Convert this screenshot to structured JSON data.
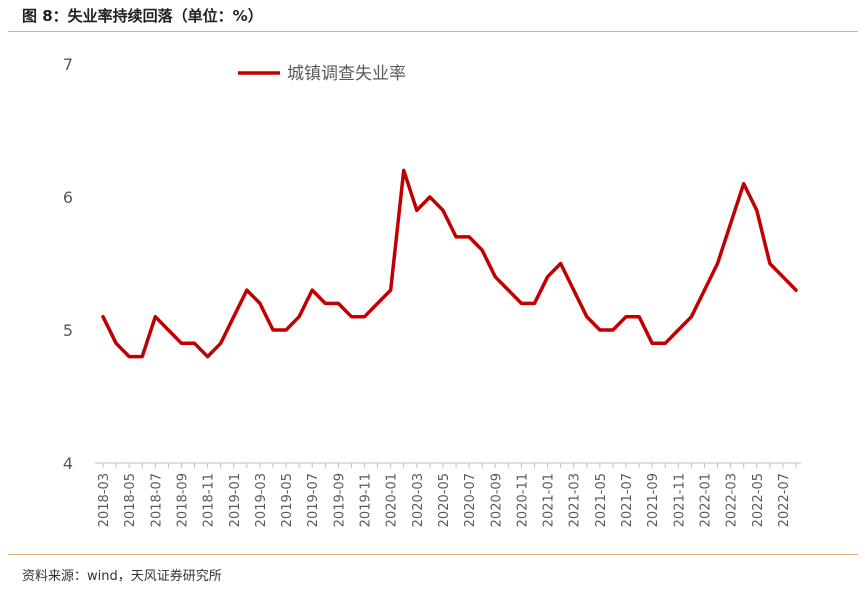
{
  "header": {
    "title": "图 8：失业率持续回落（单位：%）"
  },
  "footer": {
    "source": "资料来源：wind，天风证券研究所"
  },
  "colors": {
    "series": "#c00000",
    "axis": "#bfbfbf",
    "text": "#595959",
    "rule": "#e0b27a"
  },
  "chart_data": {
    "type": "line",
    "title": "",
    "xlabel": "",
    "ylabel": "",
    "ylim": [
      4,
      7
    ],
    "yticks": [
      4,
      5,
      6,
      7
    ],
    "grid": false,
    "legend": "top-center",
    "x": [
      "2018-03",
      "2018-04",
      "2018-05",
      "2018-06",
      "2018-07",
      "2018-08",
      "2018-09",
      "2018-10",
      "2018-11",
      "2018-12",
      "2019-01",
      "2019-02",
      "2019-03",
      "2019-04",
      "2019-05",
      "2019-06",
      "2019-07",
      "2019-08",
      "2019-09",
      "2019-10",
      "2019-11",
      "2019-12",
      "2020-01",
      "2020-02",
      "2020-03",
      "2020-04",
      "2020-05",
      "2020-06",
      "2020-07",
      "2020-08",
      "2020-09",
      "2020-10",
      "2020-11",
      "2020-12",
      "2021-01",
      "2021-02",
      "2021-03",
      "2021-04",
      "2021-05",
      "2021-06",
      "2021-07",
      "2021-08",
      "2021-09",
      "2021-10",
      "2021-11",
      "2021-12",
      "2022-01",
      "2022-02",
      "2022-03",
      "2022-04",
      "2022-05",
      "2022-06",
      "2022-07",
      "2022-08"
    ],
    "xtick_labels": [
      "2018-03",
      "2018-05",
      "2018-07",
      "2018-09",
      "2018-11",
      "2019-01",
      "2019-03",
      "2019-05",
      "2019-07",
      "2019-09",
      "2019-11",
      "2020-01",
      "2020-03",
      "2020-05",
      "2020-07",
      "2020-09",
      "2020-11",
      "2021-01",
      "2021-03",
      "2021-05",
      "2021-07",
      "2021-09",
      "2021-11",
      "2022-01",
      "2022-03",
      "2022-05",
      "2022-07"
    ],
    "series": [
      {
        "name": "城镇调查失业率",
        "values": [
          5.1,
          4.9,
          4.8,
          4.8,
          5.1,
          5.0,
          4.9,
          4.9,
          4.8,
          4.9,
          5.1,
          5.3,
          5.2,
          5.0,
          5.0,
          5.1,
          5.3,
          5.2,
          5.2,
          5.1,
          5.1,
          5.2,
          5.3,
          6.2,
          5.9,
          6.0,
          5.9,
          5.7,
          5.7,
          5.6,
          5.4,
          5.3,
          5.2,
          5.2,
          5.4,
          5.5,
          5.3,
          5.1,
          5.0,
          5.0,
          5.1,
          5.1,
          4.9,
          4.9,
          5.0,
          5.1,
          5.3,
          5.5,
          5.8,
          6.1,
          5.9,
          5.5,
          5.4,
          5.3
        ]
      }
    ]
  }
}
